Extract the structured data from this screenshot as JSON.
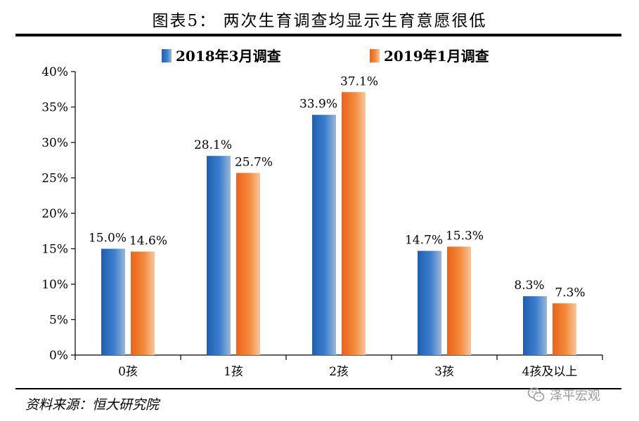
{
  "title": "图表5：  两次生育调查均显示生育意愿很低",
  "source": "资料来源：恒大研究院",
  "watermark_text": "泽平宏观",
  "watermark_icon": "wechat-icon",
  "chart_data": {
    "type": "bar",
    "categories": [
      "0孩",
      "1孩",
      "2孩",
      "3孩",
      "4孩及以上"
    ],
    "series": [
      {
        "name": "2018年3月调查",
        "values": [
          15.0,
          28.1,
          33.9,
          14.7,
          8.3
        ],
        "labels": [
          "15.0%",
          "28.1%",
          "33.9%",
          "14.7%",
          "8.3%"
        ],
        "color": "#2e6fbf"
      },
      {
        "name": "2019年1月调查",
        "values": [
          14.6,
          25.7,
          37.1,
          15.3,
          7.3
        ],
        "labels": [
          "14.6%",
          "25.7%",
          "37.1%",
          "15.3%",
          "7.3%"
        ],
        "color": "#f07a2a"
      }
    ],
    "ylim": [
      0,
      40
    ],
    "yticks": [
      0,
      5,
      10,
      15,
      20,
      25,
      30,
      35,
      40
    ],
    "ytick_labels": [
      "0%",
      "5%",
      "10%",
      "15%",
      "20%",
      "25%",
      "30%",
      "35%",
      "40%"
    ],
    "legend_position": "top-center",
    "grid": false
  }
}
